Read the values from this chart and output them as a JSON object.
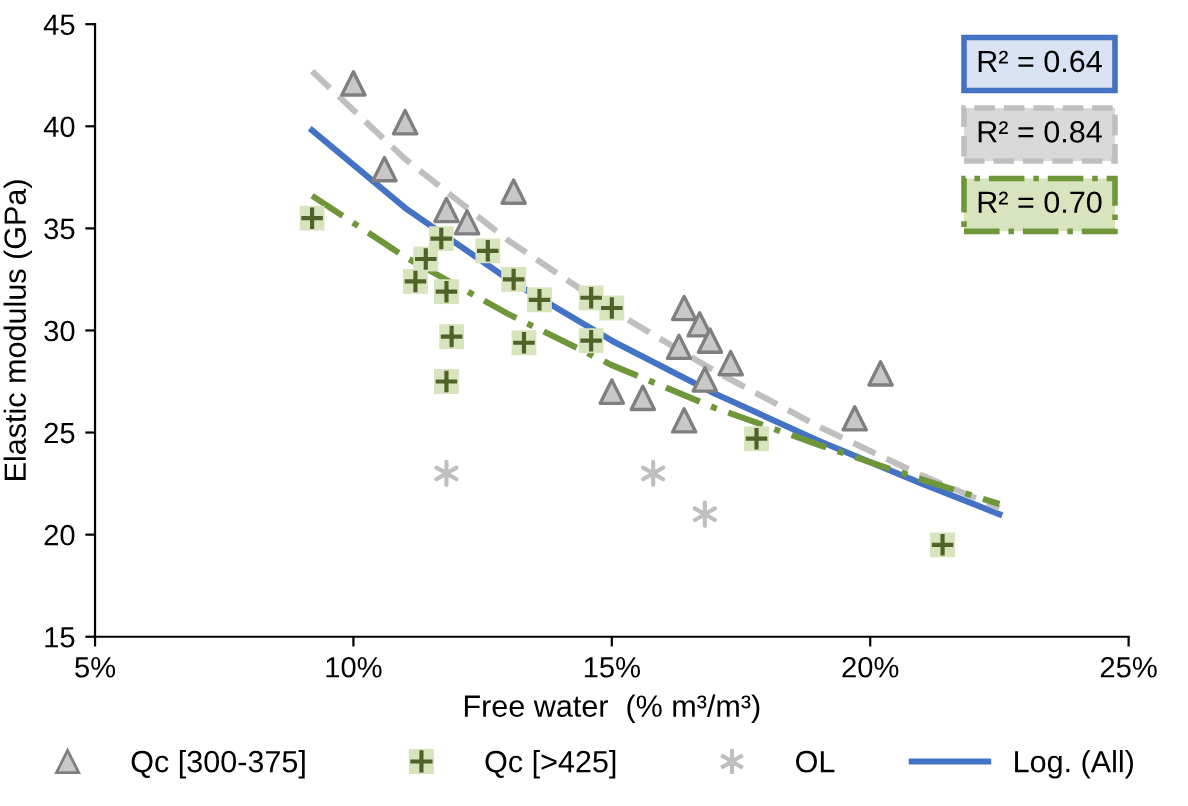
{
  "chart_data": {
    "type": "scatter",
    "xlabel": "Free water  (% m³/m³)",
    "ylabel": "Elastic modulus (GPa)",
    "xlim": [
      5,
      25
    ],
    "ylim": [
      15,
      45
    ],
    "xticks": [
      {
        "value": 5,
        "label": "5%"
      },
      {
        "value": 10,
        "label": "10%"
      },
      {
        "value": 15,
        "label": "15%"
      },
      {
        "value": 20,
        "label": "20%"
      },
      {
        "value": 25,
        "label": "25%"
      }
    ],
    "yticks": [
      15,
      20,
      25,
      30,
      35,
      40,
      45
    ],
    "grid": false,
    "legend": "bottom",
    "series": [
      {
        "name": "Qc [300-375]",
        "marker": "triangle",
        "color": "#c8c8c8",
        "x": [
          10.0,
          11.0,
          10.6,
          11.8,
          12.2,
          13.1,
          16.4,
          16.7,
          16.9,
          16.3,
          17.3,
          15.0,
          15.6,
          16.4,
          16.8,
          20.2,
          19.7
        ],
        "values": [
          42.1,
          40.2,
          37.9,
          35.9,
          35.3,
          36.8,
          31.1,
          30.3,
          29.5,
          29.2,
          28.4,
          27.0,
          26.7,
          25.6,
          27.6,
          27.9,
          25.7
        ]
      },
      {
        "name": "Qc [>425]",
        "marker": "square",
        "color": "#d7e4bd",
        "x": [
          9.2,
          11.7,
          11.4,
          11.2,
          11.8,
          12.6,
          13.1,
          13.6,
          11.9,
          11.8,
          13.3,
          14.6,
          15.0,
          14.6,
          17.8,
          21.4
        ],
        "values": [
          35.5,
          34.5,
          33.5,
          32.4,
          31.9,
          33.9,
          32.5,
          31.5,
          29.7,
          27.5,
          29.4,
          31.6,
          31.1,
          29.5,
          24.7,
          19.5
        ]
      },
      {
        "name": "OL",
        "marker": "cross",
        "color": "#bfbfbf",
        "x": [
          11.8,
          15.8,
          16.8
        ],
        "values": [
          23.0,
          23.0,
          21.0
        ]
      },
      {
        "name": "Log. (All)",
        "type": "line",
        "line_style": "solid",
        "color": "#4472c4",
        "x": [
          9.2,
          11,
          13,
          15,
          17,
          19,
          21,
          22.5
        ],
        "values": [
          39.8,
          36.0,
          32.5,
          29.5,
          26.9,
          24.6,
          22.5,
          21.0
        ]
      },
      {
        "type": "line",
        "line_style": "dashed",
        "color": "#bfbfbf",
        "x": [
          9.2,
          11,
          13,
          15,
          17,
          19,
          21,
          22.5
        ],
        "values": [
          42.7,
          38.4,
          34.4,
          31.0,
          28.0,
          25.3,
          22.9,
          21.3
        ]
      },
      {
        "type": "line",
        "line_style": "dashdot",
        "color": "#70963a",
        "x": [
          9.2,
          11,
          13,
          15,
          17,
          19,
          21,
          22.5
        ],
        "values": [
          36.6,
          33.6,
          30.8,
          28.3,
          26.2,
          24.4,
          22.7,
          21.5
        ]
      }
    ],
    "annotations": [
      "R² = 0.64",
      "R² = 0.84",
      "R² = 0.70"
    ]
  }
}
